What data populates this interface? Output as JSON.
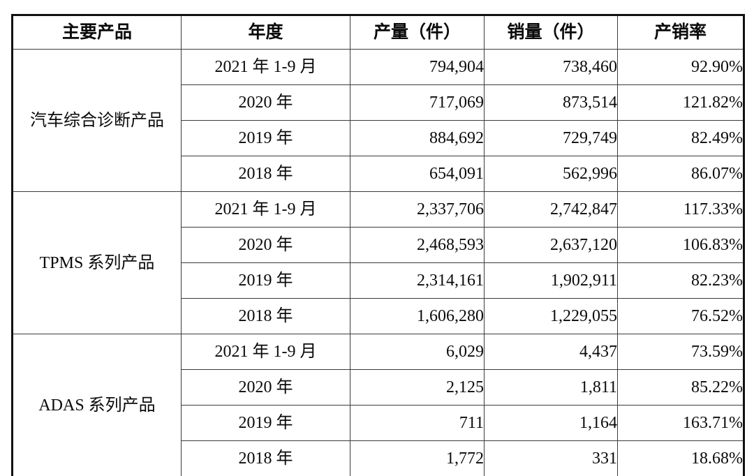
{
  "table": {
    "columns": {
      "product": "主要产品",
      "period": "年度",
      "production": "产量（件）",
      "sales": "销量（件）",
      "ratio": "产销率"
    },
    "groups": [
      {
        "product": "汽车综合诊断产品",
        "rows": [
          {
            "period": "2021 年 1-9 月",
            "production": "794,904",
            "sales": "738,460",
            "ratio": "92.90%"
          },
          {
            "period": "2020 年",
            "production": "717,069",
            "sales": "873,514",
            "ratio": "121.82%"
          },
          {
            "period": "2019 年",
            "production": "884,692",
            "sales": "729,749",
            "ratio": "82.49%"
          },
          {
            "period": "2018 年",
            "production": "654,091",
            "sales": "562,996",
            "ratio": "86.07%"
          }
        ]
      },
      {
        "product": "TPMS 系列产品",
        "rows": [
          {
            "period": "2021 年 1-9 月",
            "production": "2,337,706",
            "sales": "2,742,847",
            "ratio": "117.33%"
          },
          {
            "period": "2020 年",
            "production": "2,468,593",
            "sales": "2,637,120",
            "ratio": "106.83%"
          },
          {
            "period": "2019 年",
            "production": "2,314,161",
            "sales": "1,902,911",
            "ratio": "82.23%"
          },
          {
            "period": "2018 年",
            "production": "1,606,280",
            "sales": "1,229,055",
            "ratio": "76.52%"
          }
        ]
      },
      {
        "product": "ADAS 系列产品",
        "rows": [
          {
            "period": "2021 年 1-9 月",
            "production": "6,029",
            "sales": "4,437",
            "ratio": "73.59%"
          },
          {
            "period": "2020 年",
            "production": "2,125",
            "sales": "1,811",
            "ratio": "85.22%"
          },
          {
            "period": "2019 年",
            "production": "711",
            "sales": "1,164",
            "ratio": "163.71%"
          },
          {
            "period": "2018 年",
            "production": "1,772",
            "sales": "331",
            "ratio": "18.68%"
          }
        ]
      }
    ]
  }
}
